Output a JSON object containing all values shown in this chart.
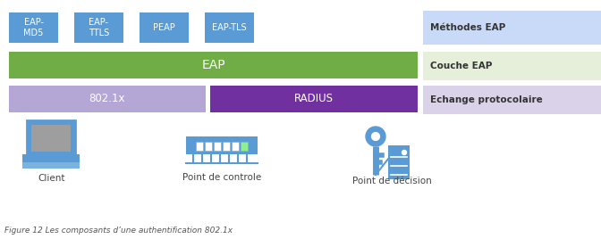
{
  "eap_methods": [
    "EAP-\nMD5",
    "EAP-\nTTLS",
    "PEAP",
    "EAP-TLS"
  ],
  "eap_method_color": "#5b9bd5",
  "eap_method_text_color": "white",
  "eap_bar_color": "#70ad47",
  "eap_bar_text": "EAP",
  "eap_bar_text_color": "white",
  "protocol_left_color": "#b4a7d6",
  "protocol_left_text": "802.1x",
  "protocol_left_text_color": "white",
  "protocol_right_color": "#7030a0",
  "protocol_right_text": "RADIUS",
  "protocol_right_text_color": "white",
  "legend_methods_color": "#c9daf8",
  "legend_methods_text": "Méthodes EAP",
  "legend_eap_color": "#e6efda",
  "legend_eap_text": "Couche EAP",
  "legend_protocol_color": "#d9d2e9",
  "legend_protocol_text": "Echange protocolaire",
  "client_text": "Client",
  "control_text": "Point de controle",
  "decision_text": "Point de décision",
  "figure_caption": "Figure 12 Les composants d’une authentification 802.1x",
  "icon_color": "#5b9bd5",
  "icon_color_light": "#7ab3e0",
  "screen_color": "#9e9e9e",
  "background_color": "white"
}
